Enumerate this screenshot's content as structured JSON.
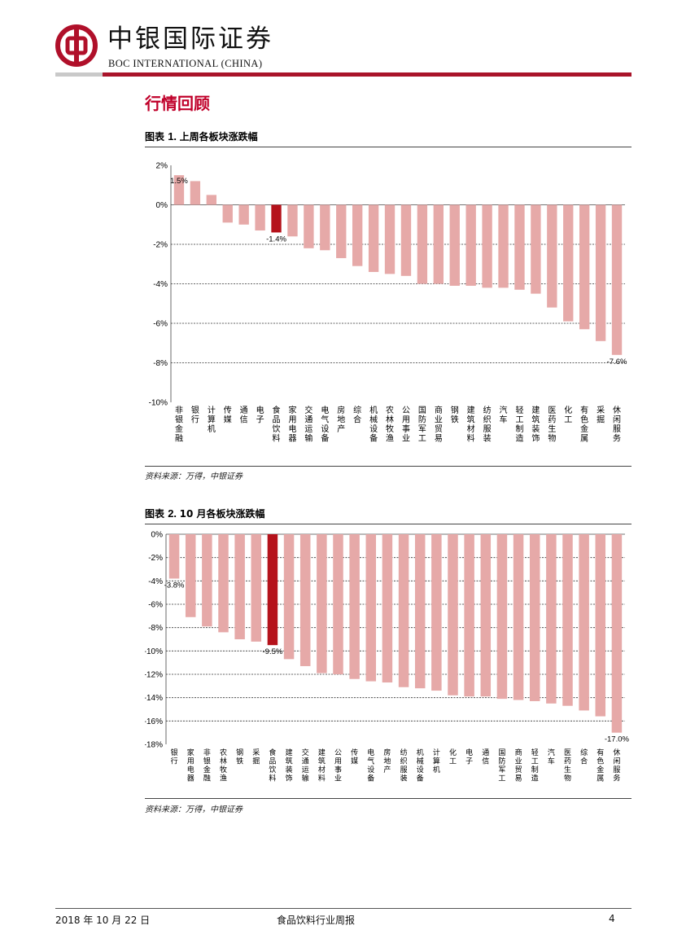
{
  "header": {
    "brand_cn": "中银国际证券",
    "brand_en": "BOC INTERNATIONAL (CHINA)"
  },
  "section_title": "行情回顾",
  "figure1": {
    "caption_prefix": "图表 ",
    "caption_num": "1. ",
    "caption_text": "上周各板块涨跌幅",
    "source": "资料来源：万得，中银证券"
  },
  "figure2": {
    "caption_prefix": "图表 ",
    "caption_num": "2. ",
    "caption_text": "10 月各板块涨跌幅",
    "source": "资料来源：万得，中银证券"
  },
  "chart_data": [
    {
      "type": "bar",
      "title": "上周各板块涨跌幅",
      "categories": [
        "非银金融",
        "银行",
        "计算机",
        "传媒",
        "通信",
        "电子",
        "食品饮料",
        "家用电器",
        "交通运输",
        "电气设备",
        "房地产",
        "综合",
        "机械设备",
        "农林牧渔",
        "公用事业",
        "国防军工",
        "商业贸易",
        "钢铁",
        "建筑材料",
        "纺织服装",
        "汽车",
        "轻工制造",
        "建筑装饰",
        "医药生物",
        "化工",
        "有色金属",
        "采掘",
        "休闲服务"
      ],
      "values": [
        1.5,
        1.2,
        0.5,
        -0.9,
        -1.0,
        -1.3,
        -1.4,
        -1.6,
        -2.2,
        -2.3,
        -2.7,
        -3.1,
        -3.4,
        -3.5,
        -3.6,
        -4.0,
        -4.0,
        -4.1,
        -4.1,
        -4.2,
        -4.2,
        -4.3,
        -4.5,
        -5.2,
        -5.9,
        -6.3,
        -6.9,
        -7.6
      ],
      "highlight_index": 6,
      "ylim": [
        -10,
        2
      ],
      "yticks": [
        2,
        0,
        -2,
        -4,
        -6,
        -8,
        -10
      ],
      "ytick_labels": [
        "2%",
        "0%",
        "-2%",
        "-4%",
        "-6%",
        "-8%",
        "-10%"
      ],
      "data_labels": [
        {
          "index": 0,
          "text": "1.5%"
        },
        {
          "index": 6,
          "text": "-1.4%"
        },
        {
          "index": 27,
          "text": "-7.6%"
        }
      ],
      "colors": {
        "bar": "#e6a9a8",
        "highlight": "#b5121b",
        "grid": "#333333"
      }
    },
    {
      "type": "bar",
      "title": "10 月各板块涨跌幅",
      "categories": [
        "银行",
        "家用电器",
        "非银金融",
        "农林牧渔",
        "钢铁",
        "采掘",
        "食品饮料",
        "建筑装饰",
        "交通运输",
        "建筑材料",
        "公用事业",
        "传媒",
        "电气设备",
        "房地产",
        "纺织服装",
        "机械设备",
        "计算机",
        "化工",
        "电子",
        "通信",
        "国防军工",
        "商业贸易",
        "轻工制造",
        "汽车",
        "医药生物",
        "综合",
        "有色金属",
        "休闲服务"
      ],
      "values": [
        -3.8,
        -7.1,
        -7.9,
        -8.4,
        -9.0,
        -9.2,
        -9.5,
        -10.7,
        -11.3,
        -11.9,
        -12.0,
        -12.4,
        -12.6,
        -12.7,
        -13.1,
        -13.2,
        -13.4,
        -13.8,
        -13.9,
        -13.9,
        -14.1,
        -14.2,
        -14.3,
        -14.5,
        -14.7,
        -15.1,
        -15.6,
        -17.0
      ],
      "highlight_index": 6,
      "ylim": [
        -18,
        0
      ],
      "yticks": [
        0,
        -2,
        -4,
        -6,
        -8,
        -10,
        -12,
        -14,
        -16,
        -18
      ],
      "ytick_labels": [
        "0%",
        "-2%",
        "-4%",
        "-6%",
        "-8%",
        "-10%",
        "-12%",
        "-14%",
        "-16%",
        "-18%"
      ],
      "data_labels": [
        {
          "index": 0,
          "text": "-3.8%"
        },
        {
          "index": 6,
          "text": "-9.5%"
        },
        {
          "index": 27,
          "text": "-17.0%"
        }
      ],
      "colors": {
        "bar": "#e6a9a8",
        "highlight": "#b5121b",
        "grid": "#333333"
      }
    }
  ],
  "footer": {
    "date": "2018 年 10 月 22 日",
    "title": "食品饮料行业周报",
    "page": "4"
  }
}
